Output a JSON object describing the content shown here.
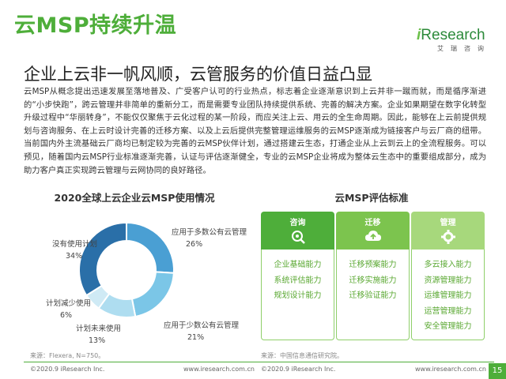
{
  "header": {
    "title": "云MSP持续升温",
    "subtitle": "企业上云非一帆风顺，云管服务的价值日益凸显",
    "logo_main": "Research",
    "logo_i": "i",
    "logo_sub": "艾瑞咨询"
  },
  "body_text": "云MSP从概念提出迅速发展至落地普及、广受客户认可的行业热点，标志着企业逐渐意识到上云并非一蹴而就，而是循序渐进的“小步快跑”，跨云管理并非简单的重新分工，而是需要专业团队持续提供系统、完善的解决方案。企业如果期望在数字化转型升级过程中“华丽转身”，不能仅仅聚焦于云化过程的某一阶段，而应关注上云、用云的全生命周期。因此，能够在上云前提供规划与咨询服务、在上云时设计完善的迁移方案、以及上云后提供完整管理运维服务的云MSP逐渐成为链接客户与云厂商的纽带。当前国内外主流基础云厂商均已制定较为完善的云MSP伙伴计划，通过搭建云生态，打通企业从上云到云上的全流程服务。可以预见，随着国内云MSP行业标准逐渐完善，认证与评估逐渐健全，专业的云MSP企业将成为整体云生态中的重要组成部分，成为助力客户真正实现跨云管理与云网协同的良好路径。",
  "chart_data": {
    "type": "pie",
    "title": "2020全球上云企业云MSP使用情况",
    "categories": [
      "应用于多数公有云管理",
      "应用于少数公有云管理",
      "计划未来使用",
      "计划减少使用",
      "没有使用计划"
    ],
    "values": [
      26,
      21,
      13,
      6,
      34
    ],
    "value_labels": [
      "26%",
      "21%",
      "13%",
      "6%",
      "34%"
    ],
    "colors": [
      "#4a9fd3",
      "#7bc6e7",
      "#aeddf0",
      "#cfeaf5",
      "#2a6fa8"
    ],
    "source": "来源：Flexera, N=750。"
  },
  "evaluation": {
    "title": "云MSP评估标准",
    "columns": [
      {
        "header": "咨询",
        "icon": "consult-icon",
        "color": "#4eae3a",
        "items": [
          "企业基础能力",
          "系统评估能力",
          "规划设计能力"
        ]
      },
      {
        "header": "迁移",
        "icon": "cloud-upload-icon",
        "color": "#7cc44e",
        "items": [
          "迁移预案能力",
          "迁移实施能力",
          "迁移验证能力"
        ]
      },
      {
        "header": "管理",
        "icon": "manage-icon",
        "color": "#a7d87c",
        "items": [
          "多云接入能力",
          "资源管理能力",
          "运维管理能力",
          "运营管理能力",
          "安全管理能力"
        ]
      }
    ],
    "source": "来源：中国信息通信研究院。"
  },
  "footer": {
    "left_copyright": "©2020.9 iResearch Inc.",
    "left_url": "www.iresearch.com.cn",
    "right_copyright": "©2020.9 iResearch Inc.",
    "right_url": "www.iresearch.com.cn",
    "page_number": "15"
  }
}
